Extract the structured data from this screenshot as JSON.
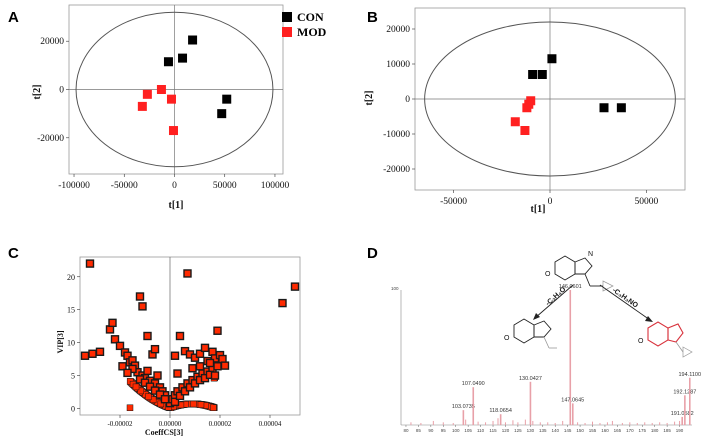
{
  "panels": {
    "A": "A",
    "B": "B",
    "C": "C",
    "D": "D"
  },
  "colors": {
    "con": "#000000",
    "mod": "#ff2020",
    "vip_fill": "#ff2a00",
    "vip_edge": "#1a1a1a",
    "ms_peak": "#e8a0a8",
    "chem_highlight": "#d8323c"
  },
  "chart_data": [
    {
      "id": "A",
      "type": "scatter",
      "xlabel": "t[1]",
      "ylabel": "t[2]",
      "xlim": [
        -105000,
        108000
      ],
      "ylim": [
        -35000,
        35000
      ],
      "xticks": [
        -100000,
        -50000,
        0,
        50000,
        100000
      ],
      "xtick_labels": [
        "-100000",
        "-50000",
        "0",
        "50000",
        "100000"
      ],
      "yticks": [
        20000,
        0,
        -20000
      ],
      "ytick_labels": [
        "20000",
        "0",
        "-20000"
      ],
      "ellipse": {
        "cx": 0,
        "cy": 0,
        "rx": 98000,
        "ry": 32000
      },
      "grid": false,
      "legend_position": "top-right",
      "legend": [
        "CON",
        "MOD"
      ],
      "series": [
        {
          "name": "CON",
          "points": [
            [
              -6000,
              11500
            ],
            [
              8000,
              13000
            ],
            [
              18000,
              20500
            ],
            [
              47000,
              -10000
            ],
            [
              52000,
              -4000
            ]
          ]
        },
        {
          "name": "MOD",
          "points": [
            [
              -32000,
              -7000
            ],
            [
              -27000,
              -2000
            ],
            [
              -13000,
              0
            ],
            [
              -3000,
              -4000
            ],
            [
              -1000,
              -17000
            ]
          ]
        }
      ]
    },
    {
      "id": "B",
      "type": "scatter",
      "xlabel": "t[1]",
      "ylabel": "t[2]",
      "xlim": [
        -70000,
        70000
      ],
      "ylim": [
        -26000,
        26000
      ],
      "xticks": [
        -50000,
        0,
        50000
      ],
      "xtick_labels": [
        "-50000",
        "0",
        "50000"
      ],
      "yticks": [
        20000,
        10000,
        0,
        -10000,
        -20000
      ],
      "ytick_labels": [
        "20000",
        "10000",
        "0",
        "-10000",
        "-20000"
      ],
      "ellipse": {
        "cx": 0,
        "cy": 0,
        "rx": 65000,
        "ry": 22000
      },
      "grid": false,
      "series": [
        {
          "name": "CON",
          "points": [
            [
              1000,
              11500
            ],
            [
              -9000,
              7000
            ],
            [
              -4000,
              7000
            ],
            [
              28000,
              -2500
            ],
            [
              37000,
              -2500
            ]
          ]
        },
        {
          "name": "MOD",
          "points": [
            [
              -18000,
              -6500
            ],
            [
              -13000,
              -9000
            ],
            [
              -12000,
              -2500
            ],
            [
              -11000,
              -1500
            ],
            [
              -10000,
              -500
            ]
          ]
        }
      ]
    },
    {
      "id": "C",
      "type": "scatter",
      "xlabel": "CoeffCS[3]",
      "ylabel": "VIP[3]",
      "xlim": [
        -3.6e-05,
        5.2e-05
      ],
      "ylim": [
        -1,
        23
      ],
      "xticks": [
        -2e-05,
        0,
        2e-05,
        4e-05
      ],
      "xtick_labels": [
        "-0.00002",
        "0.00000",
        "0.00002",
        "0.00004"
      ],
      "yticks": [
        0,
        5,
        10,
        15,
        20
      ],
      "ytick_labels": [
        "0",
        "5",
        "10",
        "15",
        "20"
      ],
      "grid": false,
      "points": [
        [
          -3.2e-05,
          22
        ],
        [
          -3.4e-05,
          8
        ],
        [
          -3.1e-05,
          8.3
        ],
        [
          -2.8e-05,
          8.6
        ],
        [
          -2.4e-05,
          12
        ],
        [
          -2.3e-05,
          13
        ],
        [
          -2.2e-05,
          10.5
        ],
        [
          -2e-05,
          9.5
        ],
        [
          -1.8e-05,
          8.5
        ],
        [
          -1.7e-05,
          8
        ],
        [
          -1.6e-05,
          7
        ],
        [
          -1.5e-05,
          7.3
        ],
        [
          -1.4e-05,
          6.5
        ],
        [
          -1.2e-05,
          17
        ],
        [
          -1.1e-05,
          15.5
        ],
        [
          -9e-06,
          11
        ],
        [
          -7e-06,
          8.2
        ],
        [
          -6e-06,
          9
        ],
        [
          4e-06,
          11
        ],
        [
          7e-06,
          20.5
        ],
        [
          2e-06,
          8
        ],
        [
          6e-06,
          8.7
        ],
        [
          8e-06,
          8.2
        ],
        [
          1e-05,
          7.7
        ],
        [
          1.2e-05,
          8.3
        ],
        [
          1.4e-05,
          9.2
        ],
        [
          1.5e-05,
          7.2
        ],
        [
          1.7e-05,
          8.6
        ],
        [
          1.8e-05,
          7.6
        ],
        [
          1.9e-05,
          11.8
        ],
        [
          2e-05,
          8.1
        ],
        [
          2.1e-05,
          7.5
        ],
        [
          2.2e-05,
          6.5
        ],
        [
          4.5e-05,
          16
        ],
        [
          5e-05,
          18.5
        ],
        [
          -1.3e-05,
          5.5
        ],
        [
          -1.1e-05,
          5
        ],
        [
          -1e-05,
          4.6
        ],
        [
          -8e-06,
          4.2
        ],
        [
          -6e-06,
          3.8
        ],
        [
          -4e-06,
          3.2
        ],
        [
          -3e-06,
          2.6
        ],
        [
          -2e-06,
          2
        ],
        [
          -1e-06,
          1.4
        ],
        [
          0.0,
          0.8
        ],
        [
          1e-06,
          1.4
        ],
        [
          2e-06,
          2
        ],
        [
          3e-06,
          2.6
        ],
        [
          5e-06,
          3.2
        ],
        [
          7e-06,
          3.8
        ],
        [
          9e-06,
          4.3
        ],
        [
          1.1e-05,
          4.8
        ],
        [
          1.3e-05,
          5.3
        ],
        [
          1.5e-05,
          5.6
        ],
        [
          1.7e-05,
          5.9
        ],
        [
          -1.2e-05,
          4.4
        ],
        [
          -1e-05,
          3.9
        ],
        [
          -8e-06,
          3.3
        ],
        [
          -6e-06,
          2.7
        ],
        [
          -4e-06,
          2.1
        ],
        [
          -2e-06,
          1.4
        ],
        [
          2e-06,
          1.0
        ],
        [
          4e-06,
          1.9
        ],
        [
          6e-06,
          2.6
        ],
        [
          8e-06,
          3.2
        ],
        [
          1e-05,
          3.8
        ],
        [
          1.2e-05,
          4.3
        ],
        [
          1.4e-05,
          4.6
        ],
        [
          1.6e-05,
          5.1
        ],
        [
          -1.5e-05,
          6.0
        ],
        [
          -9e-06,
          5.7
        ],
        [
          -5e-06,
          5.0
        ],
        [
          3e-06,
          5.3
        ],
        [
          9e-06,
          6.1
        ],
        [
          1.2e-05,
          6.4
        ],
        [
          1.6e-05,
          6.9
        ],
        [
          -1.9e-05,
          6.4
        ],
        [
          1.9e-05,
          6.4
        ],
        [
          -1.7e-05,
          5.4
        ],
        [
          1.8e-05,
          5.0
        ]
      ]
    },
    {
      "id": "D",
      "type": "bar",
      "description": "MS/MS fragment spectrum",
      "y_top_label": "100",
      "xlim": [
        78,
        195
      ],
      "ylim": [
        0,
        100
      ],
      "labeled_peaks": [
        {
          "mz": 103.0735,
          "intensity": 11,
          "label": "103.0735"
        },
        {
          "mz": 107.049,
          "intensity": 28,
          "label": "107.0490"
        },
        {
          "mz": 118.0654,
          "intensity": 8,
          "label": "118.0654"
        },
        {
          "mz": 130.0427,
          "intensity": 32,
          "label": "130.0427"
        },
        {
          "mz": 146.0601,
          "intensity": 100,
          "label": "146.0601"
        },
        {
          "mz": 147.0645,
          "intensity": 16,
          "label": "147.0645"
        },
        {
          "mz": 191.0582,
          "intensity": 6,
          "label": "191.0582"
        },
        {
          "mz": 192.1287,
          "intensity": 22,
          "label": "192.1287"
        },
        {
          "mz": 194.11,
          "intensity": 35,
          "label": "194.1100"
        }
      ],
      "minor_peaks": [
        [
          82,
          2
        ],
        [
          86,
          1.5
        ],
        [
          91,
          3
        ],
        [
          95,
          2
        ],
        [
          99,
          1.5
        ],
        [
          104,
          4
        ],
        [
          109,
          2.5
        ],
        [
          112,
          2
        ],
        [
          115,
          3
        ],
        [
          117,
          5
        ],
        [
          120,
          2
        ],
        [
          123,
          3.5
        ],
        [
          125,
          2
        ],
        [
          128,
          4
        ],
        [
          131,
          3
        ],
        [
          134,
          2
        ],
        [
          137,
          2
        ],
        [
          140,
          1.5
        ],
        [
          143,
          3
        ],
        [
          149,
          2
        ],
        [
          152,
          1.5
        ],
        [
          155,
          2.5
        ],
        [
          158,
          1.5
        ],
        [
          161,
          2
        ],
        [
          163,
          3
        ],
        [
          167,
          1.5
        ],
        [
          170,
          2
        ],
        [
          173,
          1.5
        ],
        [
          176,
          2
        ],
        [
          179,
          1.5
        ],
        [
          182,
          2
        ],
        [
          185,
          1.5
        ],
        [
          188,
          2.5
        ],
        [
          190,
          3
        ]
      ],
      "x_tick_labels": [
        "80",
        "85",
        "90",
        "95",
        "100",
        "105",
        "110",
        "115",
        "120",
        "125",
        "130",
        "135",
        "140",
        "145",
        "150",
        "155",
        "160",
        "165",
        "170",
        "175",
        "180",
        "185",
        "190"
      ],
      "chemistry": {
        "loss_left": "-C₂H₄O",
        "loss_right": "-C₃H₃NO",
        "hydroxyl_atom": "O",
        "nitrogen_atom": "N"
      }
    }
  ]
}
